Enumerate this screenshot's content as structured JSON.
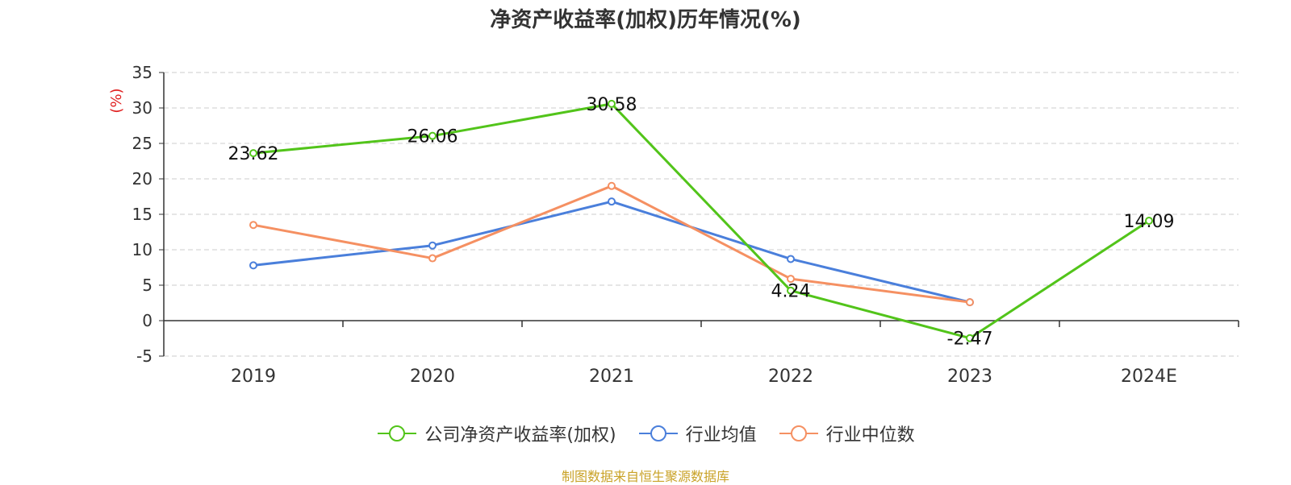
{
  "chart_data": {
    "type": "line",
    "title": "净资产收益率(加权)历年情况(%)",
    "ylabel": "(%)",
    "categories": [
      "2019",
      "2020",
      "2021",
      "2022",
      "2023",
      "2024E"
    ],
    "ylim": [
      -5,
      35
    ],
    "yticks": [
      -5,
      0,
      5,
      10,
      15,
      20,
      25,
      30,
      35
    ],
    "grid": true,
    "legend_position": "bottom",
    "series": [
      {
        "name": "公司净资产收益率(加权)",
        "color": "#52c41a",
        "values": [
          23.62,
          26.06,
          30.58,
          4.24,
          -2.47,
          14.09
        ],
        "labels": [
          "23.62",
          "26.06",
          "30.58",
          "4.24",
          "-2.47",
          "14.09"
        ]
      },
      {
        "name": "行业均值",
        "color": "#4a7fdb",
        "values": [
          7.8,
          10.6,
          16.8,
          8.7,
          2.6,
          null
        ]
      },
      {
        "name": "行业中位数",
        "color": "#f59062",
        "values": [
          13.5,
          8.8,
          19.0,
          5.9,
          2.6,
          null
        ]
      }
    ]
  },
  "source": "制图数据来自恒生聚源数据库"
}
